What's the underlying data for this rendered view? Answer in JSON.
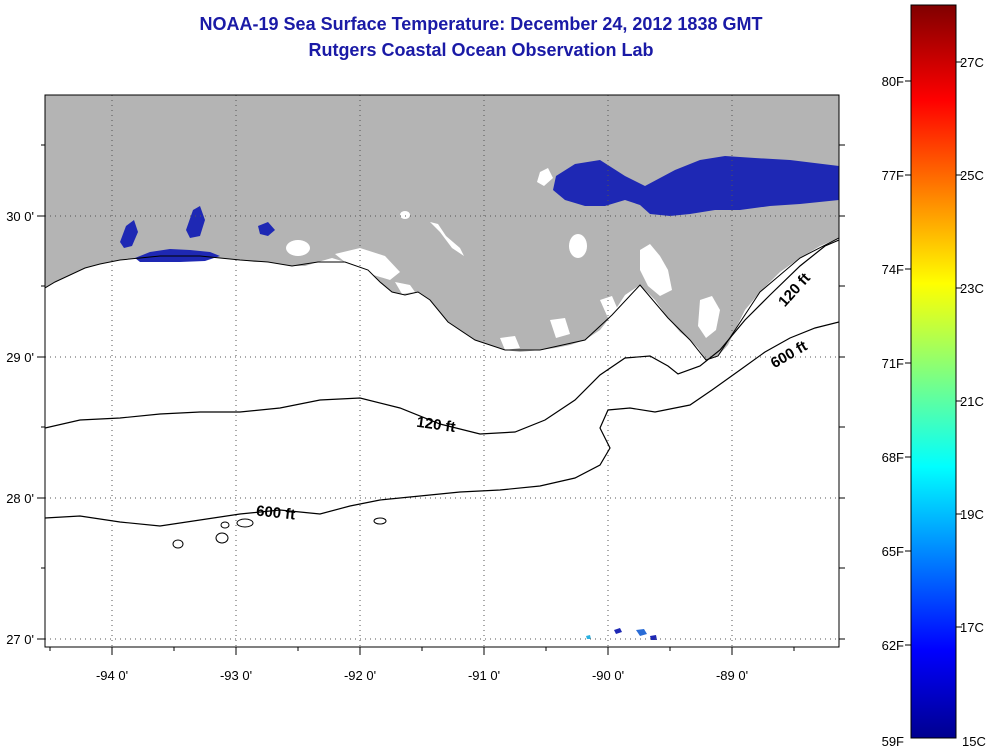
{
  "title": {
    "line1": "NOAA-19 Sea Surface Temperature:  December 24, 2012 1838 GMT",
    "line2": "Rutgers Coastal Ocean Observation Lab"
  },
  "map": {
    "region": "Gulf of Mexico - Louisiana shelf",
    "lon_ticks": [
      "-94 0'",
      "-93 0'",
      "-92 0'",
      "-91 0'",
      "-90 0'",
      "-89 0'"
    ],
    "lat_ticks": [
      "30 0'",
      "29 0'",
      "28 0'",
      "27 0'"
    ],
    "land_color": "#b4b4b4",
    "ocean_no_data_color": "#ffffff",
    "sst_patch_color": "#1e28b4",
    "contours": [
      {
        "depth_label": "120 ft",
        "name": "inner-isobath"
      },
      {
        "depth_label": "600 ft",
        "name": "outer-isobath"
      }
    ],
    "contour_labels": [
      "120 ft",
      "120 ft",
      "600 ft",
      "600 ft"
    ]
  },
  "colorbar": {
    "f_labels": [
      "80F",
      "77F",
      "74F",
      "71F",
      "68F",
      "65F",
      "62F",
      "59F"
    ],
    "c_labels": [
      "27C",
      "25C",
      "23C",
      "21C",
      "19C",
      "17C",
      "15C"
    ],
    "colors": [
      "#00008f",
      "#0000ff",
      "#00ffff",
      "#ffff00",
      "#ff0000",
      "#800000"
    ]
  }
}
